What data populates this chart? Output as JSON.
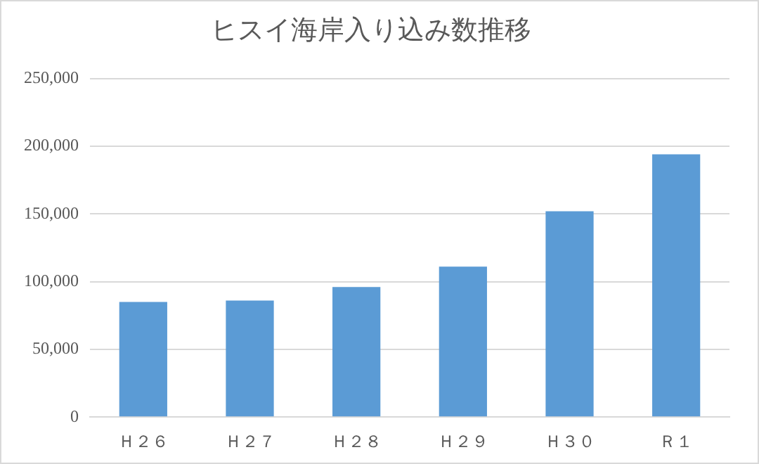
{
  "chart_data": {
    "type": "bar",
    "title": "ヒスイ海岸入り込み数推移",
    "categories": [
      "Ｈ２６",
      "Ｈ２７",
      "Ｈ２８",
      "Ｈ２９",
      "Ｈ３０",
      "Ｒ１"
    ],
    "values": [
      85000,
      86000,
      96000,
      111000,
      152000,
      194000
    ],
    "color": "#5b9bd5",
    "ylim": [
      0,
      250000
    ],
    "yticks": [
      0,
      {
        "value": 50000,
        "label": "50,000"
      },
      {
        "value": 100000,
        "label": "100,000"
      },
      {
        "value": 150000,
        "label": "150,000"
      },
      {
        "value": 200000,
        "label": "200,000"
      },
      {
        "value": 250000,
        "label": "250,000"
      }
    ],
    "grid": "y",
    "legend": false
  }
}
